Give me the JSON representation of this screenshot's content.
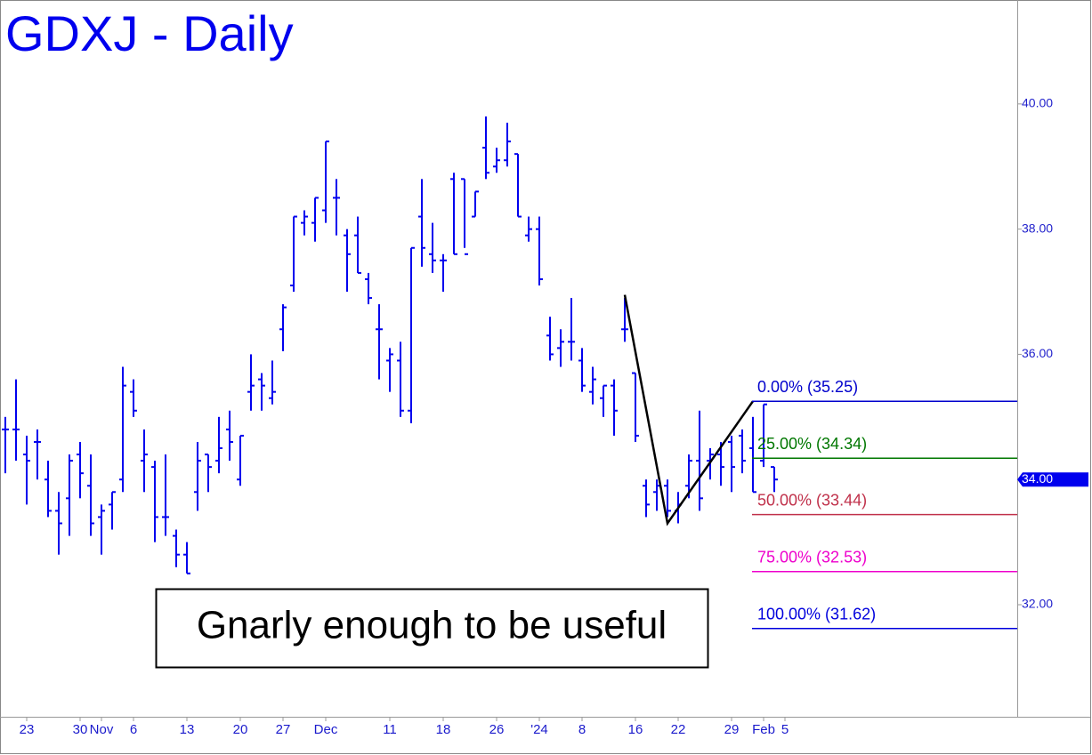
{
  "chart_data": {
    "type": "ohlc",
    "title": "GDXJ - Daily",
    "color": "#0000ee",
    "categories": [
      null,
      null,
      "23",
      null,
      null,
      null,
      null,
      "30",
      null,
      "Nov",
      null,
      null,
      "6",
      null,
      null,
      null,
      null,
      "13",
      null,
      null,
      null,
      null,
      "20",
      null,
      null,
      null,
      "27",
      null,
      null,
      null,
      "Dec",
      null,
      null,
      null,
      null,
      null,
      "11",
      null,
      null,
      null,
      null,
      "18",
      null,
      null,
      null,
      null,
      "26",
      null,
      null,
      null,
      "'24",
      null,
      null,
      null,
      "8",
      null,
      null,
      null,
      null,
      "16",
      null,
      null,
      null,
      "22",
      null,
      null,
      null,
      null,
      "29",
      null,
      null,
      "Feb",
      null,
      "5"
    ],
    "open": [
      34.8,
      34.8,
      34.4,
      34.6,
      34.0,
      33.5,
      33.7,
      34.4,
      33.9,
      33.4,
      33.6,
      34.0,
      35.4,
      34.3,
      34.2,
      33.4,
      33.1,
      32.8,
      33.8,
      34.4,
      34.3,
      34.8,
      34.0,
      35.4,
      35.6,
      35.3,
      36.4,
      37.1,
      38.1,
      38.1,
      38.3,
      38.5,
      37.9,
      37.9,
      37.2,
      36.4,
      35.9,
      35.9,
      35.1,
      38.2,
      37.6,
      37.5,
      38.8,
      38.8,
      38.2,
      39.3,
      39.0,
      39.1,
      39.2,
      37.9,
      38.0,
      36.3,
      36.1,
      36.2,
      35.9,
      35.4,
      35.3,
      35.5,
      36.4,
      35.7,
      33.9,
      33.8,
      33.9,
      33.5,
      33.9,
      34.3,
      34.3,
      34.4,
      34.6,
      34.7,
      34.5,
      34.3,
      34.2,
      null
    ],
    "high": [
      35.0,
      35.6,
      34.7,
      34.8,
      34.3,
      33.8,
      34.4,
      34.6,
      34.4,
      33.6,
      33.8,
      35.8,
      35.6,
      34.8,
      34.3,
      34.4,
      33.2,
      33.0,
      34.6,
      34.4,
      35.0,
      35.1,
      34.7,
      36.0,
      35.7,
      35.9,
      36.8,
      38.2,
      38.3,
      38.5,
      39.4,
      38.8,
      38.0,
      38.2,
      37.3,
      36.8,
      36.1,
      36.2,
      37.7,
      38.8,
      38.1,
      37.6,
      38.9,
      38.8,
      38.6,
      39.8,
      39.3,
      39.7,
      39.2,
      38.2,
      38.2,
      36.6,
      36.4,
      36.9,
      36.1,
      35.8,
      35.5,
      35.6,
      36.9,
      35.7,
      34.0,
      34.0,
      34.0,
      33.8,
      34.4,
      35.1,
      34.5,
      34.6,
      34.7,
      34.8,
      35.0,
      35.2,
      34.2,
      null
    ],
    "low": [
      34.1,
      34.3,
      33.6,
      34.0,
      33.4,
      32.8,
      33.1,
      33.7,
      33.1,
      32.8,
      33.2,
      33.8,
      35.0,
      33.8,
      33.0,
      33.1,
      32.6,
      32.5,
      33.5,
      33.8,
      34.1,
      34.3,
      33.9,
      35.1,
      35.1,
      35.2,
      36.05,
      37.0,
      37.9,
      37.8,
      38.1,
      37.9,
      37.0,
      37.3,
      36.8,
      35.6,
      35.4,
      35.0,
      34.9,
      37.4,
      37.3,
      37.0,
      37.6,
      37.7,
      38.2,
      38.8,
      38.9,
      39.0,
      38.2,
      37.8,
      37.1,
      35.9,
      35.8,
      35.9,
      35.4,
      35.2,
      35.0,
      34.7,
      36.2,
      34.6,
      33.4,
      33.5,
      33.4,
      33.3,
      33.7,
      33.5,
      34.0,
      33.9,
      33.8,
      34.1,
      33.8,
      34.2,
      33.8,
      null
    ],
    "close": [
      34.8,
      34.8,
      34.3,
      34.6,
      33.5,
      33.3,
      34.3,
      34.1,
      33.3,
      33.5,
      33.8,
      35.5,
      35.1,
      34.4,
      33.4,
      33.4,
      32.8,
      32.5,
      34.3,
      34.2,
      34.5,
      34.6,
      34.7,
      35.5,
      35.5,
      35.4,
      36.75,
      38.2,
      38.2,
      38.5,
      39.4,
      38.5,
      37.6,
      37.3,
      36.9,
      36.4,
      36.0,
      35.1,
      37.7,
      37.7,
      37.5,
      37.5,
      37.6,
      37.6,
      38.6,
      38.9,
      39.1,
      39.4,
      38.2,
      38.0,
      37.2,
      36.0,
      36.2,
      36.2,
      35.5,
      35.6,
      35.5,
      35.1,
      36.4,
      34.7,
      33.6,
      33.9,
      33.5,
      33.6,
      34.3,
      33.7,
      34.4,
      34.2,
      34.2,
      34.3,
      33.8,
      35.2,
      34.0,
      null
    ],
    "ylim": [
      30.21,
      41.66
    ],
    "yticks": [
      {
        "value": 32,
        "label": "32.00"
      },
      {
        "value": 34,
        "label": "34.00"
      },
      {
        "value": 36,
        "label": "36.00"
      },
      {
        "value": 38,
        "label": "38.00"
      },
      {
        "value": 40,
        "label": "40.00"
      }
    ],
    "last_price": {
      "value": 34.0,
      "label": "34.00"
    },
    "pattern": {
      "x": [
        58,
        62,
        70
      ],
      "values": [
        36.95,
        33.3,
        35.25
      ]
    },
    "fib_levels": [
      {
        "label": "0.00% (35.25)",
        "value": 35.25,
        "color": "#0000cc"
      },
      {
        "label": "25.00% (34.34)",
        "value": 34.34,
        "color": "#007700"
      },
      {
        "label": "50.00% (33.44)",
        "value": 33.44,
        "color": "#c0304a"
      },
      {
        "label": "75.00% (32.53)",
        "value": 32.53,
        "color": "#ee00cc"
      },
      {
        "label": "100.00% (31.62)",
        "value": 31.62,
        "color": "#0000dd"
      }
    ],
    "annotation": "Gnarly enough to be useful"
  }
}
